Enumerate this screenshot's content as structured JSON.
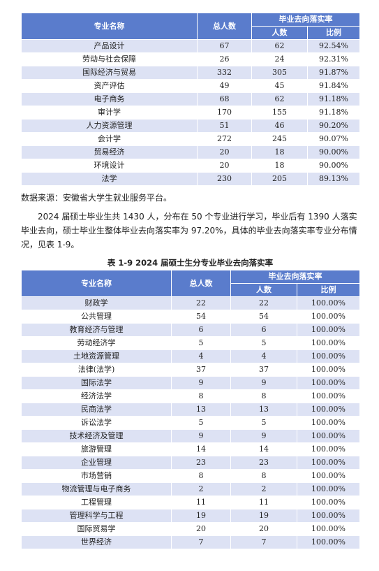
{
  "table1": {
    "header": {
      "name": "专业名称",
      "total": "总人数",
      "group": "毕业去向落实率",
      "count": "人数",
      "ratio": "比例"
    },
    "rows": [
      [
        "产品设计",
        "67",
        "62",
        "92.54%"
      ],
      [
        "劳动与社会保障",
        "26",
        "24",
        "92.31%"
      ],
      [
        "国际经济与贸易",
        "332",
        "305",
        "91.87%"
      ],
      [
        "资产评估",
        "49",
        "45",
        "91.84%"
      ],
      [
        "电子商务",
        "68",
        "62",
        "91.18%"
      ],
      [
        "审计学",
        "170",
        "155",
        "91.18%"
      ],
      [
        "人力资源管理",
        "51",
        "46",
        "90.20%"
      ],
      [
        "会计学",
        "272",
        "245",
        "90.07%"
      ],
      [
        "贸易经济",
        "20",
        "18",
        "90.00%"
      ],
      [
        "环境设计",
        "20",
        "18",
        "90.00%"
      ],
      [
        "法学",
        "230",
        "205",
        "89.13%"
      ]
    ]
  },
  "source": "数据来源：安徽省大学生就业服务平台。",
  "paragraph": "2024 届硕士毕业生共 1430 人，分布在 50 个专业进行学习，毕业后有 1390 人落实毕业去向，硕士毕业生整体毕业去向落实率为 97.20%，具体的毕业去向落实率专业分布情况，见表 1-9。",
  "caption": "表 1-9   2024 届硕士生分专业毕业去向落实率",
  "table2": {
    "header": {
      "name": "专业名称",
      "total": "总人数",
      "group": "毕业去向落实率",
      "count": "人数",
      "ratio": "比例"
    },
    "rows": [
      [
        "财政学",
        "22",
        "22",
        "100.00%"
      ],
      [
        "公共管理",
        "54",
        "54",
        "100.00%"
      ],
      [
        "教育经济与管理",
        "6",
        "6",
        "100.00%"
      ],
      [
        "劳动经济学",
        "5",
        "5",
        "100.00%"
      ],
      [
        "土地资源管理",
        "4",
        "4",
        "100.00%"
      ],
      [
        "法律(法学)",
        "37",
        "37",
        "100.00%"
      ],
      [
        "国际法学",
        "9",
        "9",
        "100.00%"
      ],
      [
        "经济法学",
        "8",
        "8",
        "100.00%"
      ],
      [
        "民商法学",
        "13",
        "13",
        "100.00%"
      ],
      [
        "诉讼法学",
        "5",
        "5",
        "100.00%"
      ],
      [
        "技术经济及管理",
        "9",
        "9",
        "100.00%"
      ],
      [
        "旅游管理",
        "14",
        "14",
        "100.00%"
      ],
      [
        "企业管理",
        "23",
        "23",
        "100.00%"
      ],
      [
        "市场营销",
        "8",
        "8",
        "100.00%"
      ],
      [
        "物流管理与电子商务",
        "2",
        "2",
        "100.00%"
      ],
      [
        "工程管理",
        "11",
        "11",
        "100.00%"
      ],
      [
        "管理科学与工程",
        "19",
        "19",
        "100.00%"
      ],
      [
        "国际贸易学",
        "20",
        "20",
        "100.00%"
      ],
      [
        "世界经济",
        "7",
        "7",
        "100.00%"
      ]
    ]
  }
}
